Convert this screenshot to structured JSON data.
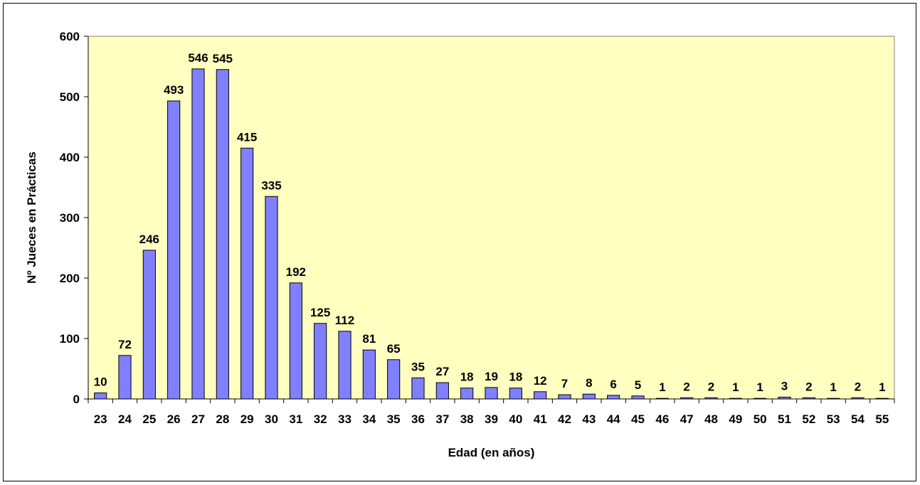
{
  "chart_data": {
    "type": "bar",
    "title": "",
    "xlabel": "Edad (en años)",
    "ylabel": "Nº Jueces en Prácticas",
    "ylim": [
      0,
      600
    ],
    "yticks": [
      "0",
      "100",
      "200",
      "300",
      "400",
      "500",
      "600"
    ],
    "categories": [
      "23",
      "24",
      "25",
      "26",
      "27",
      "28",
      "29",
      "30",
      "31",
      "32",
      "33",
      "34",
      "35",
      "36",
      "37",
      "38",
      "39",
      "40",
      "41",
      "42",
      "43",
      "44",
      "45",
      "46",
      "47",
      "48",
      "49",
      "50",
      "51",
      "52",
      "53",
      "54",
      "55"
    ],
    "values": [
      10,
      72,
      246,
      493,
      546,
      545,
      415,
      335,
      192,
      125,
      112,
      81,
      65,
      35,
      27,
      18,
      19,
      18,
      12,
      7,
      8,
      6,
      5,
      1,
      2,
      2,
      1,
      1,
      3,
      2,
      1,
      2,
      1
    ],
    "grid": false,
    "legend": "none",
    "colors": {
      "plot_background": "#ffffc0",
      "bar_fill": "#8080ff",
      "bar_stroke": "#000000"
    }
  }
}
